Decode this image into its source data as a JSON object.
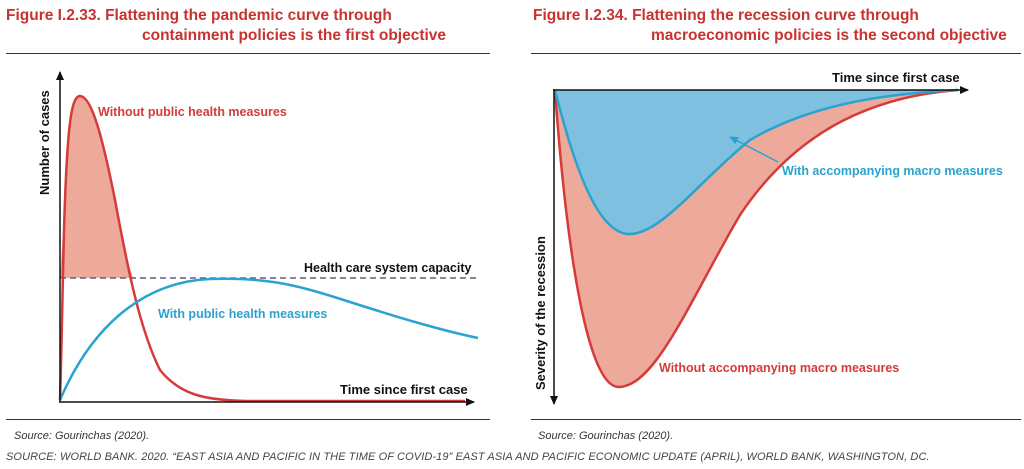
{
  "left": {
    "figure_number": "Figure I.2.33.",
    "title_line1": "Flattening the pandemic curve through",
    "title_line2": "containment policies is the first objective",
    "source_label": "Source:",
    "source_text": " Gourinchas (2020)."
  },
  "right": {
    "figure_number": "Figure I.2.34.",
    "title_line1": "Flattening the recession curve through",
    "title_line2": "macroeconomic policies is the second objective",
    "source_label": "Source:",
    "source_text": " Gourinchas (2020)."
  },
  "footer": "SOURCE: WORLD BANK. 2020. “EAST ASIA AND PACIFIC IN THE TIME OF COVID-19” EAST ASIA AND PACIFIC ECONOMIC UPDATE (APRIL), WORLD BANK, WASHINGTON, DC.",
  "colors": {
    "red": "#d63a3a",
    "red_fill": "#eda99a",
    "blue": "#2aa3cf",
    "blue_fill": "#7fbfe0",
    "title_red": "#c8322f"
  },
  "chart_data": [
    {
      "type": "line",
      "xlabel": "Time since first case",
      "ylabel": "Number of cases",
      "series": [
        {
          "name": "Without public health measures",
          "color": "#d63a3a"
        },
        {
          "name": "With public health measures",
          "color": "#2aa3cf"
        }
      ],
      "reference_line": {
        "label": "Health care system capacity",
        "style": "dashed"
      },
      "annotations": [
        "Without public health measures",
        "Health care system capacity",
        "With public health measures"
      ]
    },
    {
      "type": "area",
      "xlabel": "Time since first case",
      "ylabel": "Severity of the recession",
      "series": [
        {
          "name": "Without accompanying macro measures",
          "color": "#d63a3a"
        },
        {
          "name": "With accompanying macro measures",
          "color": "#2aa3cf"
        }
      ],
      "annotations": [
        "With accompanying macro measures",
        "Without accompanying macro measures"
      ]
    }
  ]
}
